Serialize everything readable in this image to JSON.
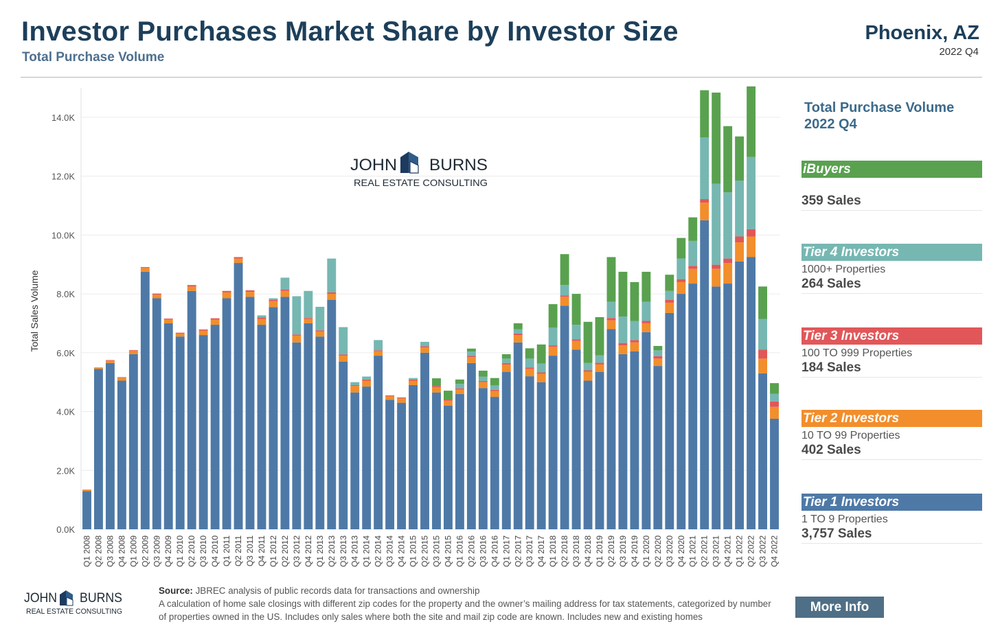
{
  "header": {
    "title": "Investor Purchases Market Share by Investor Size",
    "subtitle": "Total Purchase Volume",
    "region": "Phoenix, AZ",
    "period": "2022 Q4"
  },
  "logo": {
    "line1_left": "JOHN",
    "line1_right": "BURNS",
    "line2": "REAL ESTATE CONSULTING"
  },
  "panel": {
    "title_line1": "Total Purchase Volume",
    "title_line2": "2022 Q4",
    "items": [
      {
        "name": "iBuyers",
        "desc": "",
        "count": "359 Sales",
        "color": "#59a14f"
      },
      {
        "name": "Tier 4 Investors",
        "desc": "1000+ Properties",
        "count": "264 Sales",
        "color": "#76b7b2"
      },
      {
        "name": "Tier 3 Investors",
        "desc": "100 TO 999 Properties",
        "count": "184 Sales",
        "color": "#e15759"
      },
      {
        "name": "Tier 2 Investors",
        "desc": "10 TO 99 Properties",
        "count": "402 Sales",
        "color": "#f28e2b"
      },
      {
        "name": "Tier 1 Investors",
        "desc": "1 TO 9 Properties",
        "count": "3,757 Sales",
        "color": "#4e79a7"
      }
    ]
  },
  "footer": {
    "source_label": "Source:",
    "source_text": " JBREC analysis of public records data for transactions and ownership",
    "description": "A calculation of home sale closings with different zip codes for the property and the owner’s mailing address for tax statements, categorized by number of properties owned in the US. Includes only sales where both the site and mail zip code are known. Includes new and existing homes",
    "more_info": "More Info"
  },
  "chart_data": {
    "type": "bar",
    "stacked": true,
    "ylabel": "Total Sales Volume",
    "ylim": [
      0,
      15000
    ],
    "yticks": [
      "0.0K",
      "2.0K",
      "4.0K",
      "6.0K",
      "8.0K",
      "10.0K",
      "12.0K",
      "14.0K"
    ],
    "grid": true,
    "categories": [
      "Q1 2008",
      "Q2 2008",
      "Q3 2008",
      "Q4 2008",
      "Q1 2009",
      "Q2 2009",
      "Q3 2009",
      "Q4 2009",
      "Q1 2010",
      "Q2 2010",
      "Q3 2010",
      "Q4 2010",
      "Q1 2011",
      "Q2 2011",
      "Q3 2011",
      "Q4 2011",
      "Q1 2012",
      "Q2 2012",
      "Q3 2012",
      "Q4 2012",
      "Q1 2013",
      "Q2 2013",
      "Q3 2013",
      "Q4 2013",
      "Q1 2014",
      "Q2 2014",
      "Q3 2014",
      "Q4 2014",
      "Q1 2015",
      "Q2 2015",
      "Q3 2015",
      "Q4 2015",
      "Q1 2016",
      "Q2 2016",
      "Q3 2016",
      "Q4 2016",
      "Q1 2017",
      "Q2 2017",
      "Q3 2017",
      "Q4 2017",
      "Q1 2018",
      "Q2 2018",
      "Q3 2018",
      "Q4 2018",
      "Q1 2019",
      "Q2 2019",
      "Q3 2019",
      "Q4 2019",
      "Q1 2020",
      "Q2 2020",
      "Q3 2020",
      "Q4 2020",
      "Q1 2021",
      "Q2 2021",
      "Q3 2021",
      "Q4 2021",
      "Q1 2022",
      "Q2 2022",
      "Q3 2022",
      "Q4 2022"
    ],
    "series": [
      {
        "name": "Tier 1 Investors",
        "color": "#4e79a7",
        "values": [
          1300,
          5450,
          5650,
          5050,
          5950,
          8750,
          7850,
          7000,
          6550,
          8100,
          6600,
          6950,
          7850,
          9050,
          7900,
          6950,
          7550,
          7900,
          6350,
          7000,
          6550,
          7800,
          5700,
          4650,
          4850,
          5900,
          4400,
          4300,
          4900,
          6000,
          4650,
          4200,
          4600,
          5650,
          4800,
          4500,
          5350,
          6350,
          5200,
          5000,
          5900,
          7600,
          6100,
          5050,
          5350,
          6800,
          5950,
          6050,
          6700,
          5550,
          7350,
          8000,
          8350,
          10500,
          8250,
          8350,
          9100,
          9250,
          5300,
          3757
        ]
      },
      {
        "name": "Tier 2 Investors",
        "color": "#f28e2b",
        "values": [
          50,
          50,
          80,
          100,
          120,
          130,
          120,
          130,
          100,
          150,
          150,
          170,
          200,
          150,
          170,
          200,
          200,
          200,
          230,
          150,
          170,
          200,
          200,
          220,
          200,
          150,
          120,
          150,
          150,
          180,
          180,
          170,
          150,
          200,
          200,
          200,
          250,
          250,
          250,
          280,
          300,
          300,
          300,
          300,
          250,
          300,
          300,
          300,
          300,
          250,
          350,
          400,
          500,
          600,
          600,
          700,
          650,
          700,
          500,
          402
        ]
      },
      {
        "name": "Tier 3 Investors",
        "color": "#e15759",
        "values": [
          0,
          0,
          20,
          20,
          20,
          30,
          40,
          30,
          30,
          50,
          40,
          50,
          50,
          50,
          50,
          50,
          50,
          50,
          40,
          30,
          40,
          50,
          40,
          30,
          40,
          30,
          30,
          30,
          40,
          40,
          40,
          40,
          40,
          40,
          40,
          40,
          50,
          50,
          50,
          50,
          50,
          50,
          50,
          50,
          60,
          80,
          80,
          80,
          80,
          80,
          100,
          100,
          100,
          120,
          140,
          150,
          200,
          250,
          300,
          184
        ]
      },
      {
        "name": "Tier 4 Investors",
        "color": "#76b7b2",
        "values": [
          0,
          0,
          0,
          0,
          0,
          0,
          0,
          0,
          0,
          0,
          0,
          0,
          0,
          0,
          0,
          70,
          50,
          400,
          1300,
          920,
          800,
          1150,
          930,
          100,
          100,
          350,
          0,
          0,
          50,
          150,
          0,
          0,
          150,
          150,
          150,
          150,
          150,
          150,
          300,
          300,
          600,
          350,
          500,
          250,
          250,
          550,
          900,
          650,
          650,
          200,
          300,
          700,
          850,
          2100,
          2750,
          2250,
          1900,
          2450,
          1050,
          264
        ]
      },
      {
        "name": "iBuyers",
        "color": "#59a14f",
        "values": [
          0,
          0,
          0,
          0,
          0,
          0,
          0,
          0,
          0,
          0,
          0,
          0,
          0,
          0,
          0,
          0,
          0,
          0,
          0,
          0,
          0,
          0,
          0,
          0,
          0,
          0,
          0,
          0,
          0,
          0,
          260,
          300,
          150,
          100,
          200,
          250,
          150,
          200,
          350,
          650,
          800,
          1050,
          1050,
          1400,
          1300,
          1520,
          1520,
          1320,
          1020,
          150,
          550,
          700,
          800,
          1600,
          3100,
          2250,
          1500,
          2400,
          1100,
          359
        ]
      }
    ]
  }
}
